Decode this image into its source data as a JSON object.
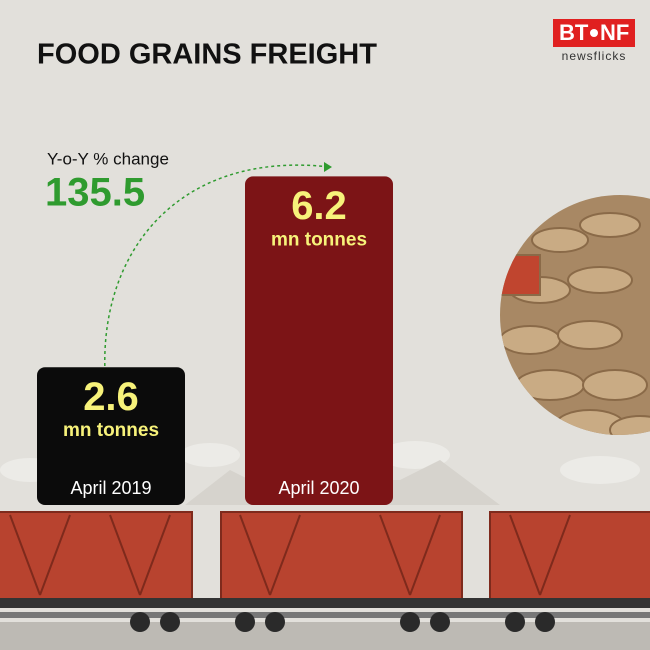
{
  "brand": {
    "left": "BT",
    "right": "NF",
    "tagline": "newsflicks"
  },
  "chart_data": {
    "type": "bar",
    "title": "FOOD GRAINS FREIGHT",
    "categories": [
      "April 2019",
      "April 2020"
    ],
    "values": [
      2.6,
      6.2
    ],
    "unit": "mn tonnes",
    "colors": [
      "#0b0b0b",
      "#7c1416"
    ],
    "value_color": "#f7f27a",
    "annotation": {
      "label": "Y-o-Y % change",
      "value": 135.5,
      "color": "#2f9b2f"
    }
  }
}
